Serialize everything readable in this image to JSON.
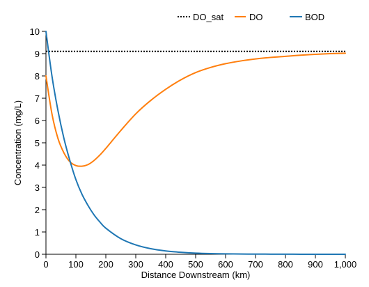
{
  "chart_data": {
    "type": "line",
    "title": "",
    "xlabel": "Distance Downstream (km)",
    "ylabel": "Concentration (mg/L)",
    "xlim": [
      0,
      1000
    ],
    "ylim": [
      0,
      10
    ],
    "x_ticks": [
      0,
      100,
      200,
      300,
      400,
      500,
      600,
      700,
      800,
      900,
      1000
    ],
    "x_tick_labels": [
      "0",
      "100",
      "200",
      "300",
      "400",
      "500",
      "600",
      "700",
      "800",
      "900",
      "1,000"
    ],
    "y_ticks": [
      0,
      1,
      2,
      3,
      4,
      5,
      6,
      7,
      8,
      9,
      10
    ],
    "y_tick_labels": [
      "0",
      "1",
      "2",
      "3",
      "4",
      "5",
      "6",
      "7",
      "8",
      "9",
      "10"
    ],
    "grid": false,
    "legend_position": "top-right",
    "series": [
      {
        "name": "DO_sat",
        "color": "#000000",
        "style": "dotted",
        "x": [
          0,
          1000
        ],
        "y": [
          9.1,
          9.1
        ]
      },
      {
        "name": "DO",
        "color": "#ff7f0e",
        "style": "solid",
        "x": [
          0,
          20,
          40,
          60,
          80,
          100,
          120,
          140,
          160,
          180,
          200,
          250,
          300,
          350,
          400,
          450,
          500,
          550,
          600,
          650,
          700,
          750,
          800,
          850,
          900,
          950,
          1000
        ],
        "y": [
          8.0,
          6.3,
          5.2,
          4.55,
          4.15,
          3.98,
          3.95,
          4.02,
          4.2,
          4.45,
          4.75,
          5.55,
          6.3,
          6.9,
          7.4,
          7.82,
          8.15,
          8.38,
          8.55,
          8.67,
          8.76,
          8.83,
          8.88,
          8.93,
          8.97,
          9.0,
          9.02
        ]
      },
      {
        "name": "BOD",
        "color": "#1f77b4",
        "style": "solid",
        "x": [
          0,
          20,
          40,
          60,
          80,
          100,
          120,
          140,
          160,
          180,
          200,
          250,
          300,
          350,
          400,
          450,
          500,
          550,
          600,
          650,
          700,
          750,
          800,
          850,
          900,
          950,
          1000
        ],
        "y": [
          10.0,
          8.0,
          6.45,
          5.2,
          4.2,
          3.35,
          2.7,
          2.2,
          1.78,
          1.45,
          1.17,
          0.7,
          0.42,
          0.25,
          0.15,
          0.09,
          0.05,
          0.03,
          0.02,
          0.01,
          0.008,
          0.005,
          0.003,
          0.002,
          0.001,
          0.0005,
          0.0003
        ]
      }
    ]
  }
}
